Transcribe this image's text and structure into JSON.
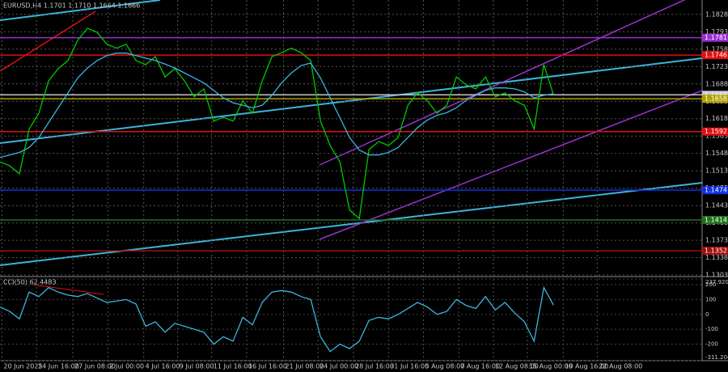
{
  "chart_data": {
    "type": "price",
    "title": "EURUSD,H4  1.1701 1.1710 1.1664 1.1666",
    "xlim": [
      0,
      72.3
    ],
    "xticks": [
      {
        "value": 0.2,
        "label": "20 Jun 2025"
      },
      {
        "value": 3.75,
        "label": "24 Jun 16:00"
      },
      {
        "value": 7.5,
        "label": "27 Jun 08:00"
      },
      {
        "value": 11.1,
        "label": "2 Jul 00:00"
      },
      {
        "value": 14.8,
        "label": "4 Jul 16:00"
      },
      {
        "value": 18.3,
        "label": "9 Jul 08:00"
      },
      {
        "value": 21.8,
        "label": "11 Jul 16:00"
      },
      {
        "value": 25.4,
        "label": "16 Jul 16:00"
      },
      {
        "value": 29.2,
        "label": "21 Jul 08:00"
      },
      {
        "value": 32.75,
        "label": "24 Jul 00:00"
      },
      {
        "value": 36.4,
        "label": "28 Jul 16:00"
      },
      {
        "value": 40,
        "label": "31 Jul 16:00"
      },
      {
        "value": 43.6,
        "label": "5 Aug 08:00"
      },
      {
        "value": 47.25,
        "label": "7 Aug 16:00"
      },
      {
        "value": 50.8,
        "label": "12 Aug 08:00"
      },
      {
        "value": 54.3,
        "label": "15 Aug 00:00"
      },
      {
        "value": 58,
        "label": "19 Aug 16:00"
      },
      {
        "value": 61.5,
        "label": "22 Aug 08:00"
      }
    ],
    "ylim": [
      1.13,
      1.1857
    ],
    "yticks": [
      1.1828,
      1.1793,
      1.1758,
      1.1723,
      1.1688,
      1.1653,
      1.1618,
      1.1583,
      1.1548,
      1.1513,
      1.1478,
      1.1443,
      1.1408,
      1.1373,
      1.1338,
      1.1303
    ],
    "grid": true,
    "x": [
      0,
      1,
      2,
      3,
      4,
      5,
      6,
      7,
      8,
      9,
      10,
      11,
      12,
      13,
      14,
      15,
      16,
      17,
      18,
      19,
      20,
      21,
      22,
      23,
      24,
      25,
      26,
      27,
      28,
      29,
      30,
      31,
      32,
      33,
      34,
      35,
      36,
      37,
      38,
      39,
      40,
      41,
      42,
      43,
      44,
      45,
      46,
      47,
      48,
      49,
      50,
      51,
      52,
      53,
      54,
      55,
      56,
      57
    ],
    "series": [
      {
        "color": "#00c800",
        "values": [
          1.1531,
          1.1523,
          1.1507,
          1.1597,
          1.1629,
          1.1694,
          1.1719,
          1.1735,
          1.1776,
          1.18,
          1.1792,
          1.1768,
          1.176,
          1.1768,
          1.1735,
          1.1727,
          1.1743,
          1.1702,
          1.1719,
          1.1694,
          1.1662,
          1.1678,
          1.1613,
          1.1621,
          1.1613,
          1.1654,
          1.1629,
          1.1694,
          1.1743,
          1.1751,
          1.176,
          1.1751,
          1.1735,
          1.1613,
          1.1564,
          1.1531,
          1.1434,
          1.1417,
          1.1556,
          1.1572,
          1.1564,
          1.158,
          1.1645,
          1.167,
          1.1654,
          1.1629,
          1.1645,
          1.1702,
          1.1686,
          1.1678,
          1.1702,
          1.1662,
          1.167,
          1.1654,
          1.1645,
          1.1597,
          1.1727,
          1.1666
        ]
      },
      {
        "color": "#3cb4dc",
        "values": [
          1.154,
          1.1545,
          1.155,
          1.156,
          1.158,
          1.161,
          1.164,
          1.167,
          1.17,
          1.172,
          1.1735,
          1.1745,
          1.175,
          1.175,
          1.1745,
          1.174,
          1.1735,
          1.1728,
          1.172,
          1.171,
          1.17,
          1.169,
          1.1675,
          1.166,
          1.165,
          1.1645,
          1.164,
          1.1645,
          1.1665,
          1.169,
          1.171,
          1.1725,
          1.173,
          1.17,
          1.166,
          1.162,
          1.158,
          1.1555,
          1.1545,
          1.1545,
          1.155,
          1.156,
          1.158,
          1.16,
          1.1615,
          1.1625,
          1.163,
          1.164,
          1.1655,
          1.1665,
          1.1675,
          1.168,
          1.168,
          1.1678,
          1.1672,
          1.166,
          1.1665,
          1.1668
        ]
      }
    ],
    "levels": [
      {
        "value": 1.1781,
        "color": "#9b30d0"
      },
      {
        "value": 1.1746,
        "color": "#e01010"
      },
      {
        "value": 1.1666,
        "color": "#c8c8c8"
      },
      {
        "value": 1.1658,
        "color": "#b0a000"
      },
      {
        "value": 1.1592,
        "color": "#e01010"
      },
      {
        "value": 1.1474,
        "color": "#1030e0"
      },
      {
        "value": 1.1414,
        "color": "#207020"
      },
      {
        "value": 1.1352,
        "color": "#a01010"
      }
    ],
    "indicator": {
      "title": "CCI(50) 62.4483",
      "ylim": [
        -311.204,
        237.9205
      ],
      "yticks": [
        237.9205,
        200,
        100,
        0,
        -100,
        -200,
        -311.204
      ],
      "color": "#3cb4dc",
      "values": [
        50,
        20,
        -30,
        150,
        120,
        180,
        150,
        130,
        120,
        140,
        110,
        80,
        90,
        100,
        70,
        -80,
        -50,
        -120,
        -60,
        -80,
        -100,
        -120,
        -200,
        -150,
        -180,
        -20,
        -70,
        80,
        150,
        160,
        150,
        120,
        100,
        -150,
        -250,
        -200,
        -230,
        -180,
        -40,
        -20,
        -30,
        0,
        40,
        80,
        50,
        0,
        20,
        100,
        60,
        40,
        120,
        30,
        80,
        10,
        -50,
        -180,
        180,
        62.4483
      ]
    }
  }
}
